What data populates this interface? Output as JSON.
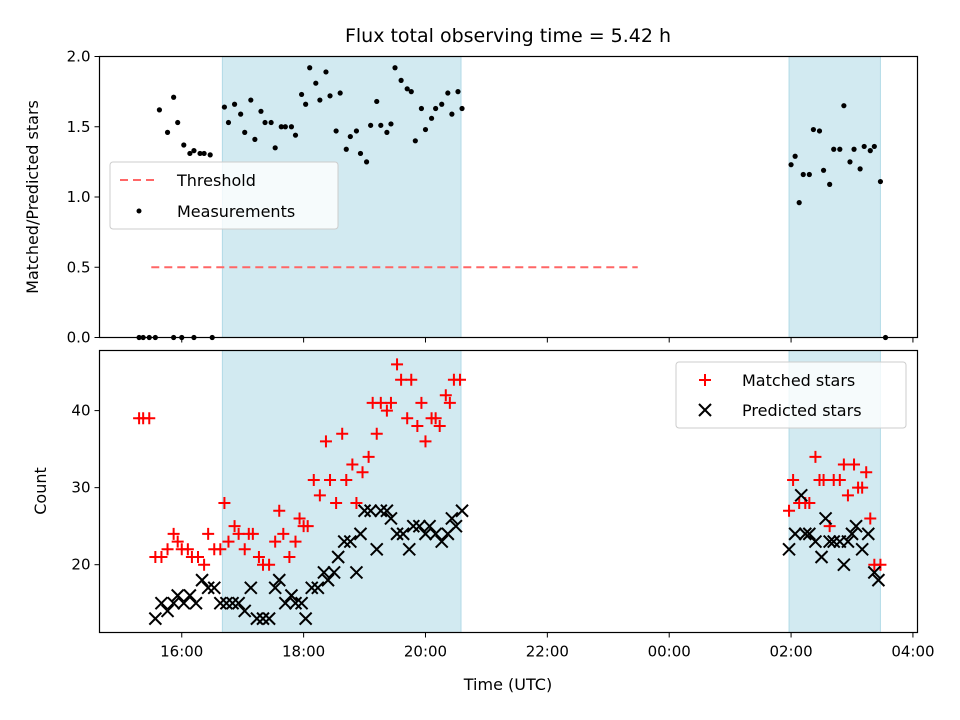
{
  "title": "Flux total observing time = 5.42 h",
  "colors": {
    "shade": "#add8e6",
    "threshold": "#ff6666",
    "measurement": "#000000",
    "matched": "#ff0000",
    "predicted": "#000000"
  },
  "chart_data": [
    {
      "type": "scatter",
      "title": "Flux total observing time = 5.42 h",
      "ylabel": "Matched/Predicted stars",
      "xlabel": "",
      "ylim": [
        0,
        2.0
      ],
      "yticks": [
        "0.0",
        "0.5",
        "1.0",
        "1.5",
        "2.0"
      ],
      "legend": {
        "placement": "center-left",
        "entries": [
          "Threshold",
          "Measurements"
        ]
      },
      "shaded_intervals": [
        [
          "16:40",
          "20:35"
        ],
        [
          "01:58",
          "03:28"
        ]
      ],
      "threshold": {
        "name": "Threshold",
        "y": 0.5,
        "x": [
          "15:30",
          "23:29"
        ]
      },
      "series": [
        {
          "name": "Measurements",
          "points": [
            [
              "15:18",
              0.0
            ],
            [
              "15:22",
              0.0
            ],
            [
              "15:28",
              0.0
            ],
            [
              "15:34",
              0.0
            ],
            [
              "15:38",
              1.62
            ],
            [
              "15:46",
              1.46
            ],
            [
              "15:52",
              1.71
            ],
            [
              "15:56",
              1.53
            ],
            [
              "16:02",
              1.37
            ],
            [
              "16:08",
              1.31
            ],
            [
              "16:12",
              1.33
            ],
            [
              "16:18",
              1.31
            ],
            [
              "16:22",
              1.31
            ],
            [
              "16:28",
              1.3
            ],
            [
              "16:42",
              1.64
            ],
            [
              "16:46",
              1.53
            ],
            [
              "16:52",
              1.66
            ],
            [
              "16:58",
              1.59
            ],
            [
              "17:02",
              1.46
            ],
            [
              "17:08",
              1.69
            ],
            [
              "17:12",
              1.41
            ],
            [
              "17:18",
              1.61
            ],
            [
              "17:22",
              1.53
            ],
            [
              "17:28",
              1.53
            ],
            [
              "17:32",
              1.35
            ],
            [
              "17:38",
              1.5
            ],
            [
              "17:42",
              1.5
            ],
            [
              "17:48",
              1.5
            ],
            [
              "17:52",
              1.44
            ],
            [
              "17:58",
              1.73
            ],
            [
              "18:02",
              1.66
            ],
            [
              "18:06",
              1.92
            ],
            [
              "18:12",
              1.81
            ],
            [
              "18:16",
              1.69
            ],
            [
              "18:22",
              1.89
            ],
            [
              "18:26",
              1.72
            ],
            [
              "18:32",
              1.47
            ],
            [
              "18:36",
              1.74
            ],
            [
              "18:42",
              1.34
            ],
            [
              "18:46",
              1.43
            ],
            [
              "18:52",
              1.47
            ],
            [
              "18:56",
              1.31
            ],
            [
              "19:02",
              1.25
            ],
            [
              "19:06",
              1.51
            ],
            [
              "19:12",
              1.68
            ],
            [
              "19:16",
              1.51
            ],
            [
              "19:22",
              1.46
            ],
            [
              "19:26",
              1.52
            ],
            [
              "19:30",
              1.92
            ],
            [
              "19:36",
              1.83
            ],
            [
              "19:42",
              1.77
            ],
            [
              "19:46",
              1.75
            ],
            [
              "19:50",
              1.4
            ],
            [
              "19:56",
              1.63
            ],
            [
              "20:00",
              1.48
            ],
            [
              "20:06",
              1.56
            ],
            [
              "20:10",
              1.63
            ],
            [
              "20:16",
              1.66
            ],
            [
              "20:22",
              1.74
            ],
            [
              "20:26",
              1.59
            ],
            [
              "20:32",
              1.75
            ],
            [
              "20:36",
              1.63
            ],
            [
              "15:52",
              0.0
            ],
            [
              "16:00",
              0.0
            ],
            [
              "16:12",
              0.0
            ],
            [
              "16:30",
              0.0
            ],
            [
              "02:00",
              1.23
            ],
            [
              "02:04",
              1.29
            ],
            [
              "02:08",
              0.96
            ],
            [
              "02:12",
              1.16
            ],
            [
              "02:18",
              1.16
            ],
            [
              "02:22",
              1.48
            ],
            [
              "02:28",
              1.47
            ],
            [
              "02:32",
              1.19
            ],
            [
              "02:38",
              1.09
            ],
            [
              "02:42",
              1.34
            ],
            [
              "02:48",
              1.34
            ],
            [
              "02:52",
              1.65
            ],
            [
              "02:58",
              1.25
            ],
            [
              "03:02",
              1.34
            ],
            [
              "03:08",
              1.2
            ],
            [
              "03:12",
              1.36
            ],
            [
              "03:18",
              1.33
            ],
            [
              "03:22",
              1.36
            ],
            [
              "03:28",
              1.11
            ],
            [
              "03:33",
              0.0
            ]
          ]
        }
      ]
    },
    {
      "type": "scatter",
      "title": "",
      "xlabel": "Time (UTC)",
      "ylabel": "Count",
      "ylim": [
        11.2,
        47.8
      ],
      "yticks": [
        "20",
        "30",
        "40"
      ],
      "xticks": [
        "16:00",
        "18:00",
        "20:00",
        "22:00",
        "00:00",
        "02:00",
        "04:00"
      ],
      "legend": {
        "placement": "top-right",
        "entries": [
          "Matched stars",
          "Predicted stars"
        ]
      },
      "shaded_intervals": [
        [
          "16:40",
          "20:35"
        ],
        [
          "01:58",
          "03:28"
        ]
      ],
      "series": [
        {
          "name": "Matched stars",
          "points": [
            [
              "15:18",
              39
            ],
            [
              "15:22",
              39
            ],
            [
              "15:28",
              39
            ],
            [
              "15:34",
              21
            ],
            [
              "15:40",
              21
            ],
            [
              "15:46",
              22
            ],
            [
              "15:52",
              24
            ],
            [
              "15:56",
              23
            ],
            [
              "16:00",
              22
            ],
            [
              "16:06",
              22
            ],
            [
              "16:10",
              21
            ],
            [
              "16:16",
              21
            ],
            [
              "16:22",
              20
            ],
            [
              "16:26",
              24
            ],
            [
              "16:32",
              22
            ],
            [
              "16:38",
              22
            ],
            [
              "16:42",
              28
            ],
            [
              "16:46",
              23
            ],
            [
              "16:52",
              25
            ],
            [
              "16:56",
              24
            ],
            [
              "17:02",
              22
            ],
            [
              "17:06",
              24
            ],
            [
              "17:10",
              24
            ],
            [
              "17:16",
              21
            ],
            [
              "17:20",
              20
            ],
            [
              "17:26",
              20
            ],
            [
              "17:32",
              23
            ],
            [
              "17:36",
              27
            ],
            [
              "17:40",
              24
            ],
            [
              "17:46",
              21
            ],
            [
              "17:52",
              23
            ],
            [
              "17:56",
              26
            ],
            [
              "18:00",
              25
            ],
            [
              "18:04",
              25
            ],
            [
              "18:10",
              31
            ],
            [
              "18:16",
              29
            ],
            [
              "18:22",
              36
            ],
            [
              "18:26",
              31
            ],
            [
              "18:32",
              28
            ],
            [
              "18:38",
              37
            ],
            [
              "18:42",
              31
            ],
            [
              "18:48",
              33
            ],
            [
              "18:52",
              28
            ],
            [
              "18:58",
              32
            ],
            [
              "19:04",
              34
            ],
            [
              "19:08",
              41
            ],
            [
              "19:12",
              37
            ],
            [
              "19:16",
              41
            ],
            [
              "19:22",
              40
            ],
            [
              "19:26",
              41
            ],
            [
              "19:32",
              46
            ],
            [
              "19:36",
              44
            ],
            [
              "19:42",
              39
            ],
            [
              "19:46",
              44
            ],
            [
              "19:52",
              38
            ],
            [
              "19:56",
              41
            ],
            [
              "20:00",
              36
            ],
            [
              "20:06",
              39
            ],
            [
              "20:10",
              39
            ],
            [
              "20:14",
              38
            ],
            [
              "20:20",
              42
            ],
            [
              "20:24",
              41
            ],
            [
              "20:28",
              44
            ],
            [
              "20:34",
              44
            ],
            [
              "01:58",
              27
            ],
            [
              "02:02",
              31
            ],
            [
              "02:08",
              28
            ],
            [
              "02:14",
              28
            ],
            [
              "02:18",
              28
            ],
            [
              "02:24",
              34
            ],
            [
              "02:28",
              31
            ],
            [
              "02:32",
              31
            ],
            [
              "02:38",
              25
            ],
            [
              "02:42",
              31
            ],
            [
              "02:48",
              31
            ],
            [
              "02:52",
              33
            ],
            [
              "02:56",
              29
            ],
            [
              "03:02",
              33
            ],
            [
              "03:06",
              30
            ],
            [
              "03:10",
              30
            ],
            [
              "03:14",
              32
            ],
            [
              "03:18",
              26
            ],
            [
              "03:22",
              20
            ],
            [
              "03:28",
              20
            ]
          ]
        },
        {
          "name": "Predicted stars",
          "points": [
            [
              "15:34",
              13
            ],
            [
              "15:40",
              15
            ],
            [
              "15:46",
              14
            ],
            [
              "15:52",
              15
            ],
            [
              "15:56",
              16
            ],
            [
              "16:02",
              15
            ],
            [
              "16:08",
              16
            ],
            [
              "16:14",
              15
            ],
            [
              "16:20",
              18
            ],
            [
              "16:26",
              17
            ],
            [
              "16:32",
              17
            ],
            [
              "16:38",
              15
            ],
            [
              "16:44",
              15
            ],
            [
              "16:50",
              15
            ],
            [
              "16:56",
              15
            ],
            [
              "17:02",
              14
            ],
            [
              "17:08",
              17
            ],
            [
              "17:14",
              13
            ],
            [
              "17:20",
              13
            ],
            [
              "17:26",
              13
            ],
            [
              "17:32",
              17
            ],
            [
              "17:36",
              18
            ],
            [
              "17:42",
              15
            ],
            [
              "17:48",
              16
            ],
            [
              "17:52",
              15
            ],
            [
              "17:58",
              15
            ],
            [
              "18:02",
              13
            ],
            [
              "18:08",
              17
            ],
            [
              "18:14",
              17
            ],
            [
              "18:20",
              19
            ],
            [
              "18:24",
              18
            ],
            [
              "18:30",
              19
            ],
            [
              "18:34",
              21
            ],
            [
              "18:40",
              23
            ],
            [
              "18:46",
              23
            ],
            [
              "18:52",
              19
            ],
            [
              "18:56",
              24
            ],
            [
              "19:00",
              27
            ],
            [
              "19:06",
              27
            ],
            [
              "19:12",
              22
            ],
            [
              "19:16",
              27
            ],
            [
              "19:22",
              27
            ],
            [
              "19:26",
              26
            ],
            [
              "19:32",
              24
            ],
            [
              "19:38",
              24
            ],
            [
              "19:44",
              22
            ],
            [
              "19:48",
              25
            ],
            [
              "19:54",
              25
            ],
            [
              "20:00",
              24
            ],
            [
              "20:04",
              25
            ],
            [
              "20:10",
              24
            ],
            [
              "20:16",
              23
            ],
            [
              "20:22",
              24
            ],
            [
              "20:26",
              26
            ],
            [
              "20:30",
              25
            ],
            [
              "20:36",
              27
            ],
            [
              "01:58",
              22
            ],
            [
              "02:04",
              24
            ],
            [
              "02:10",
              29
            ],
            [
              "02:14",
              24
            ],
            [
              "02:18",
              24
            ],
            [
              "02:24",
              23
            ],
            [
              "02:30",
              21
            ],
            [
              "02:34",
              26
            ],
            [
              "02:38",
              23
            ],
            [
              "02:42",
              23
            ],
            [
              "02:48",
              23
            ],
            [
              "02:52",
              20
            ],
            [
              "02:56",
              23
            ],
            [
              "03:00",
              24
            ],
            [
              "03:04",
              25
            ],
            [
              "03:10",
              22
            ],
            [
              "03:16",
              24
            ],
            [
              "03:22",
              19
            ],
            [
              "03:26",
              18
            ]
          ]
        }
      ]
    }
  ]
}
